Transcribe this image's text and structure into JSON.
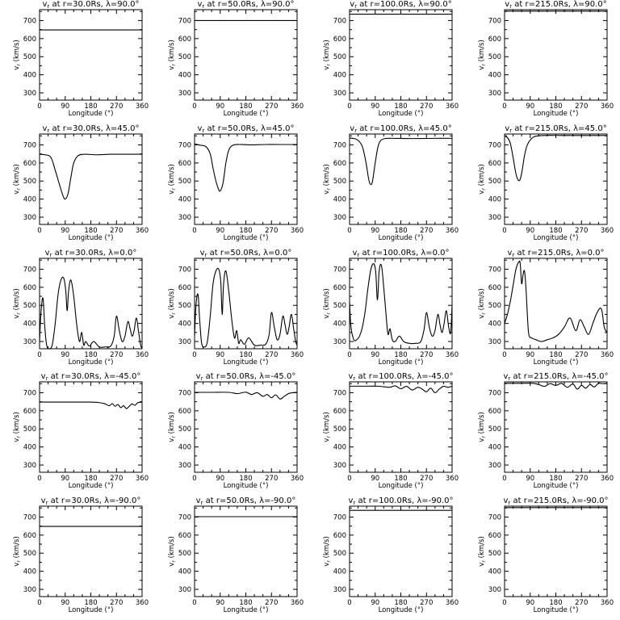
{
  "figure": {
    "xlabel": "Longitude (°)",
    "ylabel": "vr (km/s)",
    "xticks": [
      "0",
      "90",
      "180",
      "270",
      "360"
    ],
    "yticks": [
      "300",
      "400",
      "500",
      "600",
      "700"
    ]
  },
  "chart_data": [
    {
      "type": "line",
      "title": "vr at r=30.0Rs, λ=90.0°",
      "xlabel": "Longitude (°)",
      "ylabel": "vr (km/s)",
      "xlim": [
        0,
        360
      ],
      "ylim": [
        260,
        760
      ],
      "series": [
        {
          "x": [
            0,
            360
          ],
          "y": [
            648,
            648
          ]
        }
      ]
    },
    {
      "type": "line",
      "title": "vr at r=50.0Rs, λ=90.0°",
      "xlabel": "Longitude (°)",
      "ylabel": "vr (km/s)",
      "xlim": [
        0,
        360
      ],
      "ylim": [
        260,
        760
      ],
      "series": [
        {
          "x": [
            0,
            360
          ],
          "y": [
            700,
            700
          ]
        }
      ]
    },
    {
      "type": "line",
      "title": "vr at r=100.0Rs, λ=90.0°",
      "xlabel": "Longitude (°)",
      "ylabel": "vr (km/s)",
      "xlim": [
        0,
        360
      ],
      "ylim": [
        260,
        760
      ],
      "series": [
        {
          "x": [
            0,
            360
          ],
          "y": [
            735,
            735
          ]
        }
      ]
    },
    {
      "type": "line",
      "title": "vr at r=215.0Rs, λ=90.0°",
      "xlabel": "Longitude (°)",
      "ylabel": "vr (km/s)",
      "xlim": [
        0,
        360
      ],
      "ylim": [
        260,
        760
      ],
      "series": [
        {
          "x": [
            0,
            360
          ],
          "y": [
            752,
            752
          ]
        }
      ]
    },
    {
      "type": "line",
      "title": "vr at r=30.0Rs, λ=45.0°",
      "xlabel": "Longitude (°)",
      "ylabel": "vr (km/s)",
      "xlim": [
        0,
        360
      ],
      "ylim": [
        260,
        760
      ],
      "series": [
        {
          "x": [
            0,
            20,
            40,
            55,
            70,
            82,
            90,
            100,
            110,
            120,
            135,
            160,
            200,
            250,
            300,
            360
          ],
          "y": [
            648,
            645,
            630,
            560,
            480,
            420,
            400,
            430,
            520,
            600,
            640,
            648,
            645,
            648,
            648,
            648
          ]
        }
      ]
    },
    {
      "type": "line",
      "title": "vr at r=50.0Rs, λ=45.0°",
      "xlabel": "Longitude (°)",
      "ylabel": "vr (km/s)",
      "xlim": [
        0,
        360
      ],
      "ylim": [
        260,
        760
      ],
      "series": [
        {
          "x": [
            0,
            20,
            40,
            55,
            65,
            75,
            83,
            90,
            100,
            110,
            120,
            135,
            160,
            200,
            250,
            300,
            360
          ],
          "y": [
            705,
            698,
            690,
            650,
            570,
            500,
            460,
            445,
            490,
            600,
            670,
            698,
            702,
            700,
            702,
            702,
            702
          ]
        }
      ]
    },
    {
      "type": "line",
      "title": "vr at r=100.0Rs, λ=45.0°",
      "xlabel": "Longitude (°)",
      "ylabel": "vr (km/s)",
      "xlim": [
        0,
        360
      ],
      "ylim": [
        260,
        760
      ],
      "series": [
        {
          "x": [
            0,
            15,
            30,
            45,
            58,
            66,
            72,
            80,
            90,
            100,
            110,
            125,
            150,
            200,
            250,
            300,
            360
          ],
          "y": [
            738,
            735,
            725,
            690,
            600,
            520,
            485,
            495,
            600,
            690,
            725,
            735,
            736,
            735,
            735,
            736,
            736
          ]
        }
      ]
    },
    {
      "type": "line",
      "title": "vr at r=215.0Rs, λ=45.0°",
      "xlabel": "Longitude (°)",
      "ylabel": "vr (km/s)",
      "xlim": [
        0,
        360
      ],
      "ylim": [
        260,
        760
      ],
      "series": [
        {
          "x": [
            0,
            10,
            20,
            30,
            40,
            48,
            55,
            62,
            70,
            80,
            95,
            110,
            140,
            200,
            250,
            300,
            360
          ],
          "y": [
            750,
            740,
            710,
            630,
            540,
            505,
            510,
            560,
            640,
            700,
            735,
            748,
            752,
            752,
            752,
            752,
            752
          ]
        }
      ]
    },
    {
      "type": "line",
      "title": "vr at r=30.0Rs, λ=0.0°",
      "xlabel": "Longitude (°)",
      "ylabel": "vr (km/s)",
      "xlim": [
        0,
        360
      ],
      "ylim": [
        260,
        760
      ],
      "series": [
        {
          "x": [
            0,
            5,
            12,
            18,
            25,
            35,
            45,
            55,
            65,
            75,
            85,
            92,
            97,
            102,
            110,
            120,
            130,
            140,
            148,
            155,
            162,
            175,
            190,
            210,
            230,
            250,
            262,
            270,
            280,
            290,
            300,
            310,
            318,
            325,
            332,
            340,
            348,
            355,
            360
          ],
          "y": [
            300,
            460,
            540,
            390,
            280,
            260,
            285,
            400,
            560,
            640,
            650,
            580,
            470,
            580,
            640,
            550,
            400,
            300,
            350,
            280,
            300,
            275,
            300,
            270,
            270,
            275,
            330,
            440,
            360,
            300,
            330,
            410,
            370,
            330,
            360,
            430,
            350,
            280,
            260
          ]
        }
      ]
    },
    {
      "type": "line",
      "title": "vr at r=50.0Rs, λ=0.0°",
      "xlabel": "Longitude (°)",
      "ylabel": "vr (km/s)",
      "xlim": [
        0,
        360
      ],
      "ylim": [
        260,
        760
      ],
      "series": [
        {
          "x": [
            0,
            5,
            12,
            18,
            25,
            35,
            45,
            55,
            65,
            75,
            85,
            92,
            97,
            102,
            110,
            120,
            130,
            140,
            148,
            155,
            162,
            175,
            190,
            210,
            230,
            250,
            262,
            270,
            280,
            290,
            300,
            310,
            318,
            325,
            332,
            340,
            348,
            355,
            360
          ],
          "y": [
            330,
            500,
            560,
            420,
            290,
            270,
            300,
            440,
            620,
            690,
            700,
            630,
            450,
            620,
            690,
            580,
            430,
            320,
            360,
            290,
            310,
            285,
            320,
            280,
            280,
            285,
            340,
            460,
            380,
            310,
            340,
            440,
            390,
            340,
            380,
            450,
            370,
            300,
            280
          ]
        }
      ]
    },
    {
      "type": "line",
      "title": "vr at r=100.0Rs, λ=0.0°",
      "xlabel": "Longitude (°)",
      "ylabel": "vr (km/s)",
      "xlim": [
        0,
        360
      ],
      "ylim": [
        260,
        760
      ],
      "series": [
        {
          "x": [
            0,
            5,
            15,
            25,
            35,
            45,
            55,
            65,
            75,
            85,
            92,
            98,
            104,
            112,
            120,
            128,
            135,
            142,
            150,
            160,
            175,
            190,
            210,
            230,
            250,
            262,
            270,
            280,
            290,
            300,
            310,
            318,
            325,
            332,
            340,
            348,
            355,
            360
          ],
          "y": [
            520,
            380,
            310,
            310,
            330,
            380,
            470,
            600,
            700,
            730,
            680,
            530,
            690,
            720,
            600,
            450,
            340,
            370,
            310,
            300,
            330,
            300,
            290,
            290,
            300,
            370,
            460,
            380,
            330,
            360,
            450,
            390,
            350,
            400,
            470,
            380,
            350,
            500
          ]
        }
      ]
    },
    {
      "type": "line",
      "title": "vr at r=215.0Rs, λ=0.0°",
      "xlabel": "Longitude (°)",
      "ylabel": "vr (km/s)",
      "xlim": [
        0,
        360
      ],
      "ylim": [
        260,
        760
      ],
      "series": [
        {
          "x": [
            0,
            10,
            20,
            30,
            40,
            50,
            55,
            60,
            65,
            70,
            75,
            80,
            85,
            95,
            110,
            130,
            150,
            170,
            190,
            210,
            230,
            250,
            265,
            280,
            295,
            310,
            325,
            340,
            350,
            360
          ],
          "y": [
            400,
            450,
            520,
            610,
            700,
            740,
            730,
            620,
            670,
            690,
            600,
            450,
            340,
            320,
            310,
            300,
            310,
            320,
            340,
            380,
            430,
            360,
            420,
            380,
            340,
            400,
            460,
            480,
            380,
            350
          ]
        }
      ]
    },
    {
      "type": "line",
      "title": "vr at r=30.0Rs, λ=-45.0°",
      "xlabel": "Longitude (°)",
      "ylabel": "vr (km/s)",
      "xlim": [
        0,
        360
      ],
      "ylim": [
        260,
        760
      ],
      "series": [
        {
          "x": [
            0,
            60,
            120,
            180,
            210,
            230,
            245,
            255,
            265,
            275,
            285,
            295,
            305,
            315,
            325,
            335,
            345,
            360
          ],
          "y": [
            648,
            648,
            648,
            648,
            645,
            638,
            628,
            640,
            625,
            635,
            618,
            628,
            612,
            625,
            638,
            630,
            645,
            648
          ]
        }
      ]
    },
    {
      "type": "line",
      "title": "vr at r=50.0Rs, λ=-45.0°",
      "xlabel": "Longitude (°)",
      "ylabel": "vr (km/s)",
      "xlim": [
        0,
        360
      ],
      "ylim": [
        260,
        760
      ],
      "series": [
        {
          "x": [
            0,
            60,
            120,
            150,
            180,
            200,
            220,
            240,
            255,
            270,
            285,
            300,
            315,
            330,
            345,
            360
          ],
          "y": [
            702,
            702,
            702,
            695,
            703,
            690,
            700,
            680,
            690,
            672,
            688,
            665,
            680,
            695,
            700,
            702
          ]
        }
      ]
    },
    {
      "type": "line",
      "title": "vr at r=100.0Rs, λ=-45.0°",
      "xlabel": "Longitude (°)",
      "ylabel": "vr (km/s)",
      "xlim": [
        0,
        360
      ],
      "ylim": [
        260,
        760
      ],
      "series": [
        {
          "x": [
            0,
            60,
            100,
            140,
            160,
            180,
            200,
            220,
            240,
            255,
            270,
            285,
            300,
            315,
            330,
            345,
            360
          ],
          "y": [
            736,
            736,
            736,
            730,
            738,
            722,
            735,
            715,
            730,
            720,
            705,
            725,
            700,
            720,
            735,
            730,
            736
          ]
        }
      ]
    },
    {
      "type": "line",
      "title": "vr at r=215.0Rs, λ=-45.0°",
      "xlabel": "Longitude (°)",
      "ylabel": "vr (km/s)",
      "xlim": [
        0,
        360
      ],
      "ylim": [
        260,
        760
      ],
      "series": [
        {
          "x": [
            0,
            60,
            100,
            120,
            140,
            160,
            180,
            200,
            220,
            240,
            255,
            270,
            285,
            300,
            315,
            330,
            345,
            360
          ],
          "y": [
            752,
            752,
            752,
            745,
            735,
            750,
            740,
            752,
            730,
            748,
            720,
            740,
            725,
            745,
            732,
            752,
            750,
            752
          ]
        }
      ]
    },
    {
      "type": "line",
      "title": "vr at r=30.0Rs, λ=-90.0°",
      "xlabel": "Longitude (°)",
      "ylabel": "vr (km/s)",
      "xlim": [
        0,
        360
      ],
      "ylim": [
        260,
        760
      ],
      "series": [
        {
          "x": [
            0,
            360
          ],
          "y": [
            648,
            648
          ]
        }
      ]
    },
    {
      "type": "line",
      "title": "vr at r=50.0Rs, λ=-90.0°",
      "xlabel": "Longitude (°)",
      "ylabel": "vr (km/s)",
      "xlim": [
        0,
        360
      ],
      "ylim": [
        260,
        760
      ],
      "series": [
        {
          "x": [
            0,
            360
          ],
          "y": [
            702,
            702
          ]
        }
      ]
    },
    {
      "type": "line",
      "title": "vr at r=100.0Rs, λ=-90.0°",
      "xlabel": "Longitude (°)",
      "ylabel": "vr (km/s)",
      "xlim": [
        0,
        360
      ],
      "ylim": [
        260,
        760
      ],
      "series": [
        {
          "x": [
            0,
            360
          ],
          "y": [
            737,
            737
          ]
        }
      ]
    },
    {
      "type": "line",
      "title": "vr at r=215.0Rs, λ=-90.0°",
      "xlabel": "Longitude (°)",
      "ylabel": "vr (km/s)",
      "xlim": [
        0,
        360
      ],
      "ylim": [
        260,
        760
      ],
      "series": [
        {
          "x": [
            0,
            360
          ],
          "y": [
            752,
            752
          ]
        }
      ]
    }
  ]
}
